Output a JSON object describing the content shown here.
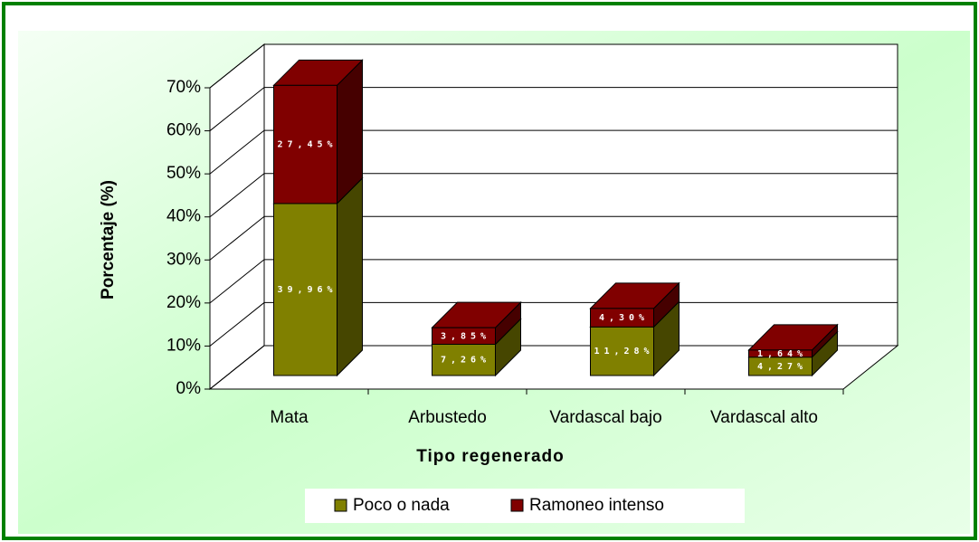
{
  "chart_data": {
    "type": "bar3d_stacked",
    "xlabel": "Tipo regenerado",
    "ylabel": "Porcentaje (%)",
    "categories": [
      "Mata",
      "Arbustedo",
      "Vardascal bajo",
      "Vardascal alto"
    ],
    "series": [
      {
        "name": "Poco o nada",
        "color": "#808000",
        "values": [
          39.96,
          7.26,
          11.28,
          4.27
        ],
        "value_labels": [
          "39,96%",
          "7,26%",
          "11,28%",
          "4,27%"
        ]
      },
      {
        "name": "Ramoneo intenso",
        "color": "#800000",
        "values": [
          27.45,
          3.85,
          4.3,
          1.64
        ],
        "value_labels": [
          "27,45%",
          "3,85%",
          "4,30%",
          "1,64%"
        ]
      }
    ],
    "ylim": [
      0,
      70
    ],
    "yticks": [
      {
        "value": 0,
        "label": "0%"
      },
      {
        "value": 10,
        "label": "10%"
      },
      {
        "value": 20,
        "label": "20%"
      },
      {
        "value": 30,
        "label": "30%"
      },
      {
        "value": 40,
        "label": "40%"
      },
      {
        "value": 50,
        "label": "50%"
      },
      {
        "value": 60,
        "label": "60%"
      },
      {
        "value": 70,
        "label": "70%"
      }
    ],
    "grid": true,
    "legend": "bottom"
  }
}
